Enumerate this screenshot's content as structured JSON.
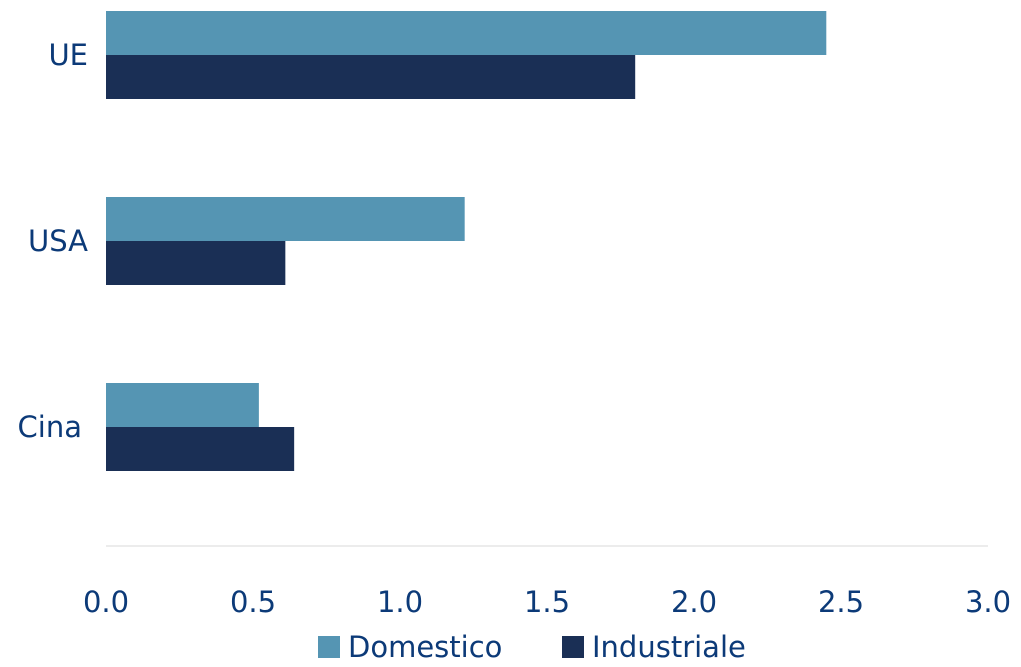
{
  "chart_data": {
    "type": "bar",
    "orientation": "horizontal",
    "categories": [
      "UE",
      "USA",
      "Cina"
    ],
    "series": [
      {
        "name": "Domestico",
        "values": [
          2.45,
          1.22,
          0.52
        ],
        "color": "#5595b3"
      },
      {
        "name": "Industriale",
        "values": [
          1.8,
          0.61,
          0.64
        ],
        "color": "#1a2f55"
      }
    ],
    "xlim": [
      0,
      3.0
    ],
    "xticks": [
      "0.0",
      "0.5",
      "1.0",
      "1.5",
      "2.0",
      "2.5",
      "3.0"
    ],
    "title": "",
    "xlabel": "",
    "ylabel": "",
    "grid": false,
    "legend_position": "bottom-center",
    "text_color": "#0c3a78",
    "axis_line_color": "#d9d9d9"
  }
}
